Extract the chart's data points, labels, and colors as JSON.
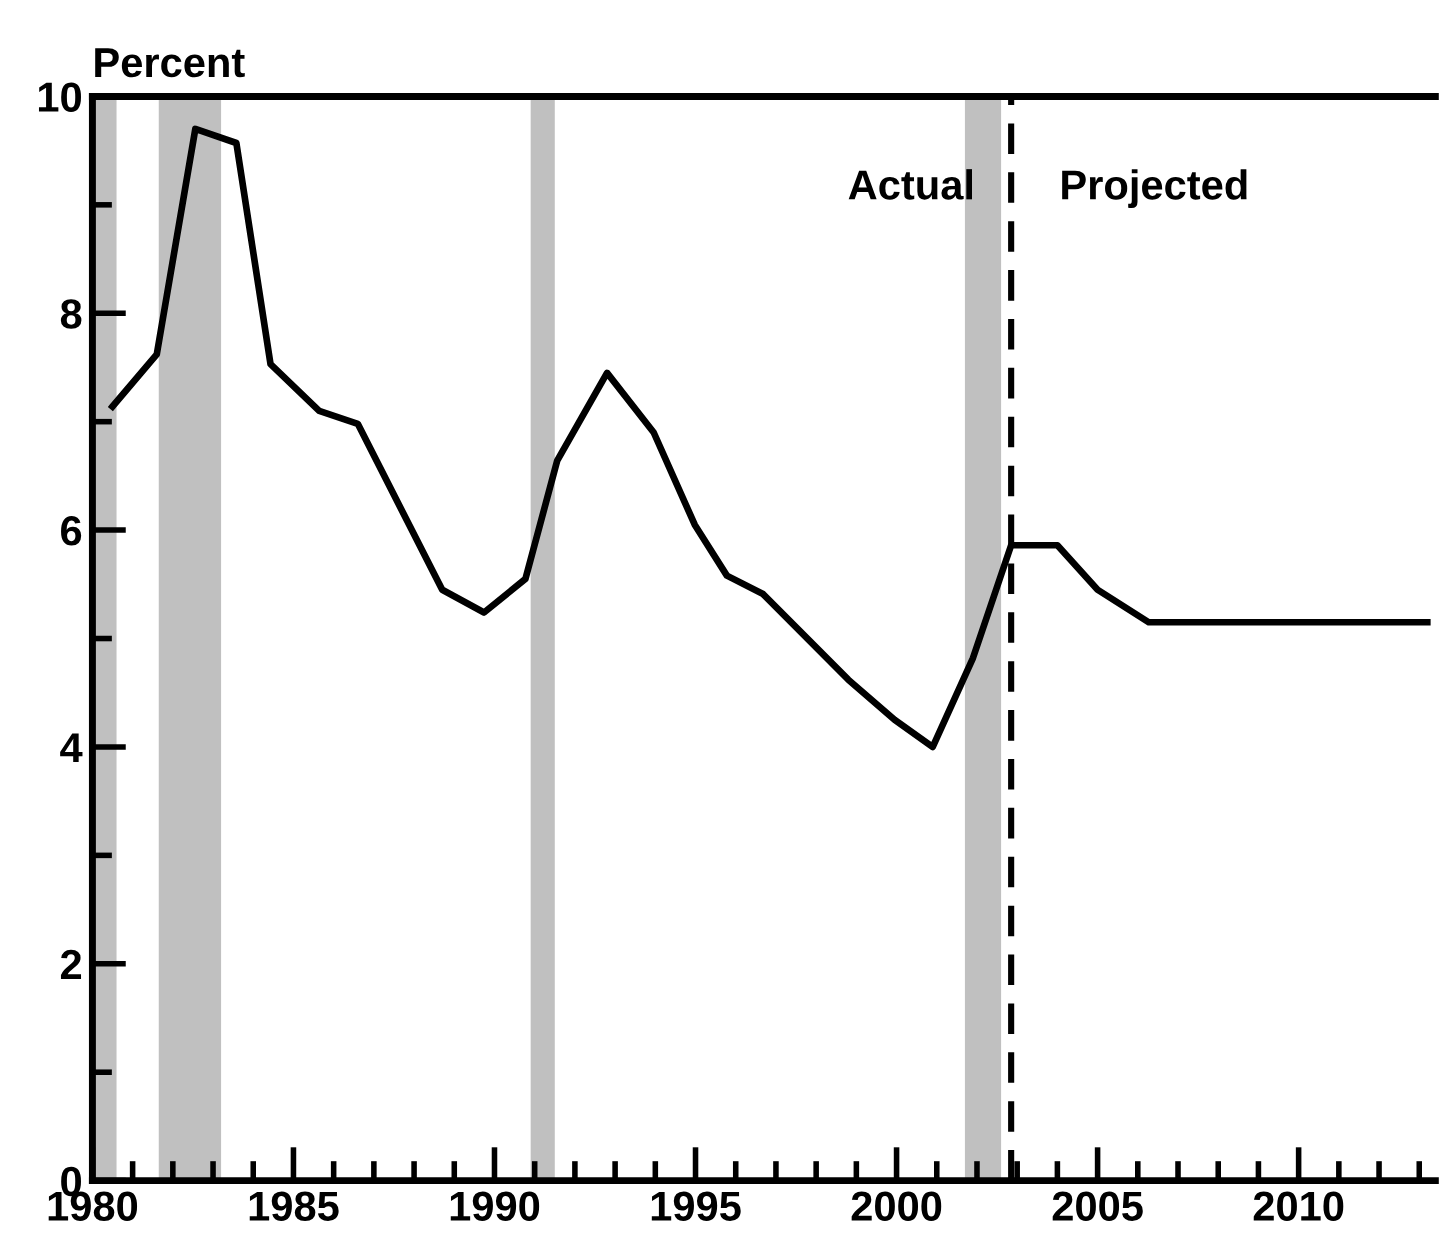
{
  "chart_data": {
    "type": "line",
    "ylabel": "Percent",
    "x": [
      1980.5,
      1981.6,
      1982.56,
      1983.58,
      1984.43,
      1985.64,
      1986.6,
      1988.7,
      1989.74,
      1990.77,
      1991.56,
      1992.8,
      1993.96,
      1994.98,
      1995.78,
      1996.68,
      1998.8,
      1999.95,
      2000.9,
      2001.9,
      2002.85,
      2004.0,
      2005.0,
      2006.27,
      2013.2
    ],
    "series": [
      {
        "color": "#000000",
        "values": [
          7.14,
          7.62,
          9.7,
          9.57,
          7.53,
          7.1,
          6.98,
          5.45,
          5.24,
          5.55,
          6.64,
          7.45,
          6.9,
          6.05,
          5.58,
          5.41,
          4.62,
          4.25,
          4.0,
          4.82,
          5.86,
          5.86,
          5.45,
          5.15,
          5.15
        ]
      }
    ],
    "xlim": [
      1980,
      2013.4
    ],
    "ylim": [
      0,
      10
    ],
    "xticks": [
      1980,
      {
        "value": 1981,
        "label": null
      },
      {
        "value": 1982,
        "label": null
      },
      {
        "value": 1983,
        "label": null
      },
      {
        "value": 1984,
        "label": null
      },
      1985,
      {
        "value": 1986,
        "label": null
      },
      {
        "value": 1987,
        "label": null
      },
      {
        "value": 1988,
        "label": null
      },
      {
        "value": 1989,
        "label": null
      },
      1990,
      {
        "value": 1991,
        "label": null
      },
      {
        "value": 1992,
        "label": null
      },
      {
        "value": 1993,
        "label": null
      },
      {
        "value": 1994,
        "label": null
      },
      1995,
      {
        "value": 1996,
        "label": null
      },
      {
        "value": 1997,
        "label": null
      },
      {
        "value": 1998,
        "label": null
      },
      {
        "value": 1999,
        "label": null
      },
      2000,
      {
        "value": 2001,
        "label": null
      },
      {
        "value": 2002,
        "label": null
      },
      {
        "value": 2003,
        "label": null
      },
      {
        "value": 2004,
        "label": null
      },
      2005,
      {
        "value": 2006,
        "label": null
      },
      {
        "value": 2007,
        "label": null
      },
      {
        "value": 2008,
        "label": null
      },
      {
        "value": 2009,
        "label": null
      },
      2010,
      {
        "value": 2011,
        "label": null
      },
      {
        "value": 2012,
        "label": null
      },
      {
        "value": 2013,
        "label": null
      }
    ],
    "yticks": [
      0,
      {
        "value": 1,
        "label": null
      },
      2,
      {
        "value": 3,
        "label": null
      },
      4,
      {
        "value": 5,
        "label": null
      },
      6,
      {
        "value": 7,
        "label": null
      },
      8,
      {
        "value": 9,
        "label": null
      },
      10
    ],
    "bands": [
      {
        "axis": "x",
        "from": 1980.05,
        "to": 1980.6,
        "color": "#c0c0c0"
      },
      {
        "axis": "x",
        "from": 1981.65,
        "to": 1983.2,
        "color": "#c0c0c0"
      },
      {
        "axis": "x",
        "from": 1990.9,
        "to": 1991.5,
        "color": "#c0c0c0"
      },
      {
        "axis": "x",
        "from": 2001.7,
        "to": 2002.6,
        "color": "#c0c0c0"
      }
    ],
    "ref_lines": [
      {
        "axis": "x",
        "value": 2002.85,
        "color": "#000000",
        "line_style": "dashed"
      }
    ],
    "annotations": [
      "Actual",
      "Projected"
    ],
    "grid": false,
    "legend": false,
    "marker": "none",
    "line_style": "solid"
  }
}
